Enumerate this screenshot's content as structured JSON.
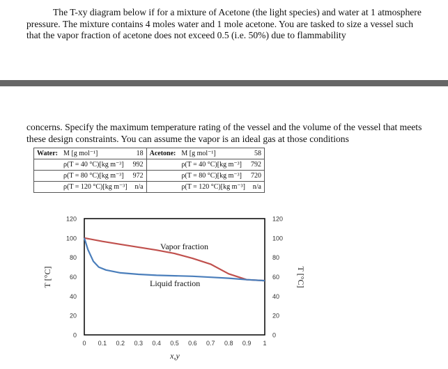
{
  "doc": {
    "paragraph1": "The T-xy diagram below if for a mixture of Acetone (the light species) and water at 1 atmosphere pressure. The mixture contains 4 moles water and 1 mole acetone. You are tasked to size a vessel such that the vapor fraction of acetone does not exceed 0.5 (i.e. 50%) due to flammability",
    "paragraph2": "concerns. Specify the maximum temperature rating of the vessel and the volume of the vessel that meets these design constraints. You can assume the vapor is an ideal gas at those conditions"
  },
  "table": {
    "water": {
      "name": "Water:",
      "rows": [
        {
          "label": "M [g mol⁻¹]",
          "value": "18"
        },
        {
          "label": "ρ(T = 40 °C)[kg m⁻³]",
          "value": "992"
        },
        {
          "label": "ρ(T = 80 °C)[kg m⁻³]",
          "value": "972"
        },
        {
          "label": "ρ(T = 120 °C)[kg m⁻³]",
          "value": "n/a"
        }
      ]
    },
    "acetone": {
      "name": "Acetone:",
      "rows": [
        {
          "label": "M [g mol⁻¹]",
          "value": "58"
        },
        {
          "label": "ρ(T = 40 °C)[kg m⁻³]",
          "value": "792"
        },
        {
          "label": "ρ(T = 80 °C)[kg m⁻³]",
          "value": "720"
        },
        {
          "label": "ρ(T = 120 °C)[kg m⁻³]",
          "value": "n/a"
        }
      ]
    }
  },
  "chart_data": {
    "type": "line",
    "xlabel": "x,y",
    "ylabel": "T [°C]",
    "xlim": [
      0,
      1
    ],
    "ylim": [
      0,
      120
    ],
    "x_ticks": [
      "0",
      "0.1",
      "0.2",
      "0.3",
      "0.4",
      "0.5",
      "0.6",
      "0.7",
      "0.8",
      "0.9",
      "1"
    ],
    "y_ticks": [
      "0",
      "20",
      "40",
      "60",
      "80",
      "100",
      "120"
    ],
    "grid": false,
    "annotations": [
      "Vapor fraction",
      "Liquid fraction"
    ],
    "series": [
      {
        "color": "#c0504d",
        "x": [
          0,
          0.1,
          0.2,
          0.3,
          0.4,
          0.5,
          0.6,
          0.7,
          0.8,
          0.9,
          1.0
        ],
        "y": [
          100,
          96.5,
          93.5,
          90.5,
          87.5,
          84,
          79,
          73,
          63,
          57,
          56
        ]
      },
      {
        "color": "#4a7ebb",
        "x": [
          0,
          0.02,
          0.05,
          0.08,
          0.12,
          0.2,
          0.3,
          0.4,
          0.5,
          0.6,
          0.7,
          0.8,
          0.9,
          1.0
        ],
        "y": [
          100,
          88,
          76,
          70,
          67,
          64,
          62.5,
          61.5,
          61,
          60.5,
          59.5,
          58.5,
          57,
          56
        ]
      }
    ]
  }
}
